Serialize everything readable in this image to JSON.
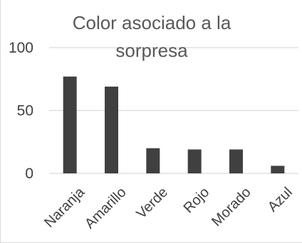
{
  "chart_data": {
    "type": "bar",
    "title_lines": [
      "Color asociado a la",
      "sorpresa"
    ],
    "categories": [
      "Naranja",
      "Amarillo",
      "Verde",
      "Rojo",
      "Morado",
      "Azul"
    ],
    "values": [
      77,
      69,
      20,
      19,
      19,
      6
    ],
    "yticks": [
      "0",
      "50",
      "100"
    ],
    "ylim": [
      0,
      100
    ],
    "grid": true,
    "legend": "none",
    "bar_color": "#404040"
  }
}
